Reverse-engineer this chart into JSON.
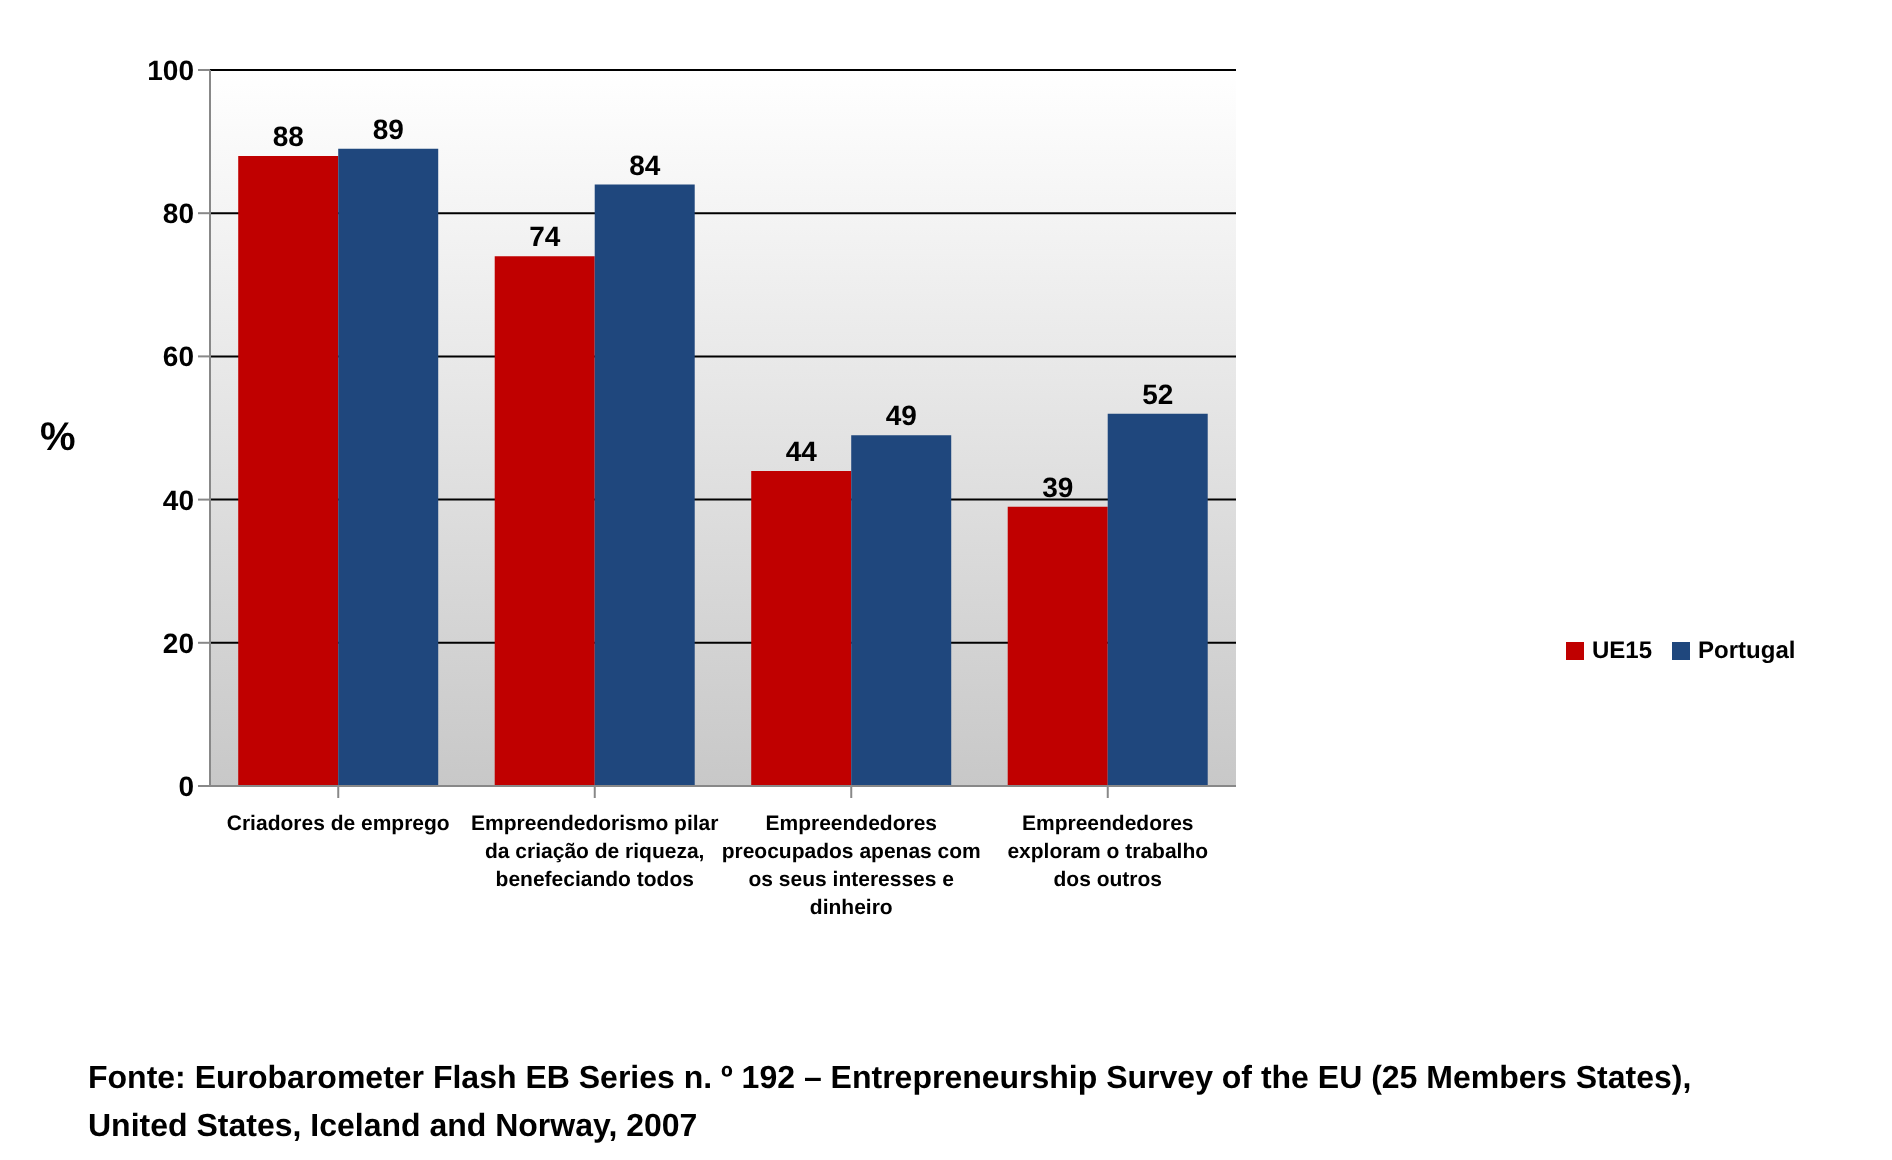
{
  "chart_data": {
    "type": "bar",
    "ylabel": "%",
    "categories": [
      "Criadores de emprego",
      "Empreendedorismo pilar da criação de riqueza, benefeciando todos",
      "Empreendedores preocupados apenas com os seus interesses e dinheiro",
      "Empreendedores exploram o trabalho dos outros"
    ],
    "series": [
      {
        "name": "UE15",
        "color": "#c00000",
        "values": [
          88,
          74,
          44,
          39
        ]
      },
      {
        "name": "Portugal",
        "color": "#1f477d",
        "values": [
          89,
          84,
          49,
          52
        ]
      }
    ],
    "ylim": [
      0,
      100
    ],
    "yticks": [
      0,
      20,
      40,
      60,
      80,
      100
    ],
    "grid": "y",
    "legend": "right",
    "data_labels": true,
    "annotations": [
      "Fonte: Eurobarometer Flash EB Series n. º 192 – Entrepreneurship Survey of the EU (25 Members States), United States, Iceland and Norway, 2007"
    ]
  }
}
